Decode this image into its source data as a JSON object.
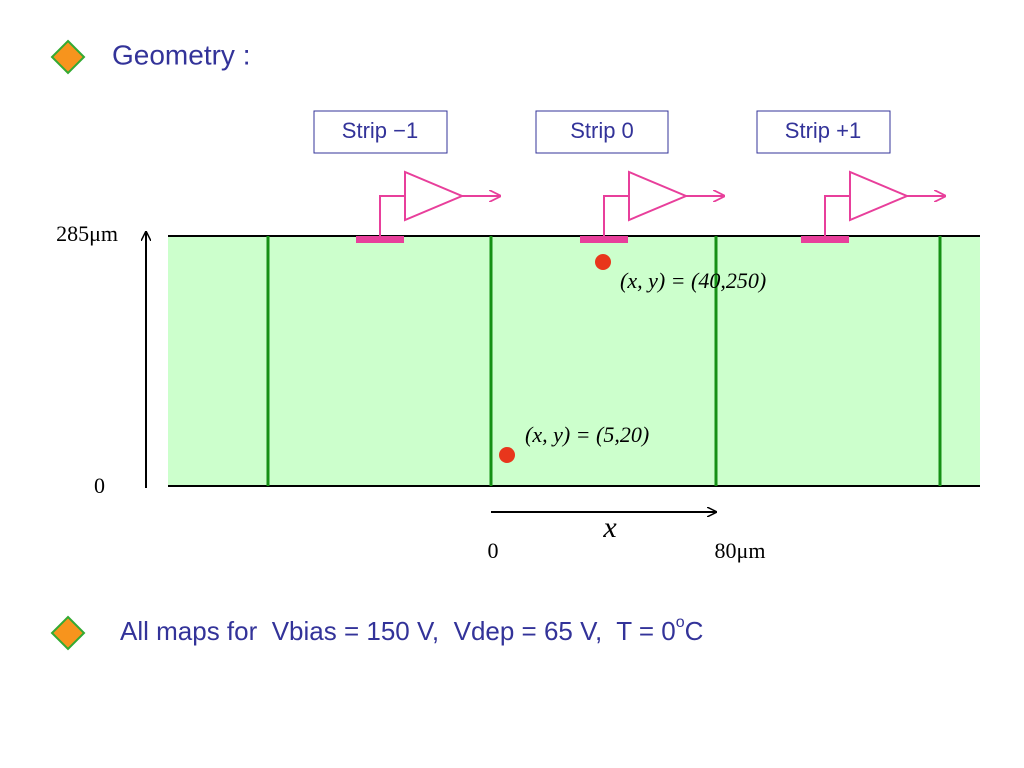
{
  "title": "Geometry :",
  "strips": [
    {
      "label": "Strip −1"
    },
    {
      "label": "Strip 0"
    },
    {
      "label": "Strip +1"
    }
  ],
  "axes": {
    "y_top": "285μm",
    "y_bottom": "0",
    "x_name": "x",
    "x_start": "0",
    "x_end": "80μm"
  },
  "points": [
    {
      "label": "(x, y) = (40,250)"
    },
    {
      "label": "(x, y) = (5,20)"
    }
  ],
  "note": {
    "text": "All maps for  Vbias = 150 V,  Vdep = 65 V,  T = 0",
    "superscript": "o",
    "unit": "C"
  }
}
